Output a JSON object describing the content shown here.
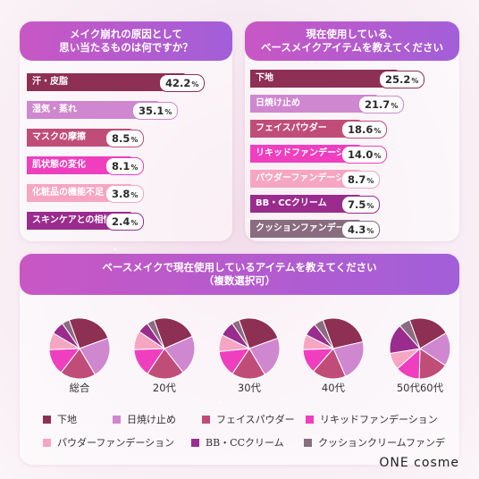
{
  "colors": {
    "c1": "#8e2f54",
    "c2": "#cf87cf",
    "c3": "#c04d78",
    "c4": "#ef3fbe",
    "c5": "#f6a6c2",
    "c6": "#9a2c8e",
    "c7": "#8a6c80"
  },
  "left_panel": {
    "title_line1": "メイク崩れの原因として",
    "title_line2": "思い当たるものは何ですか？"
  },
  "right_panel": {
    "title_line1": "現在使用している、",
    "title_line2": "ベースメイクアイテムを教えてください"
  },
  "bottom_panel": {
    "title_line1": "ベースメイクで現在使用しているアイテムを教えてください",
    "title_line2": "（複数選択可）"
  },
  "chart_data": [
    {
      "type": "bar",
      "title": "メイク崩れの原因として思い当たるものは何ですか？",
      "categories": [
        "汗・皮脂",
        "湿気・蒸れ",
        "マスクの摩擦",
        "肌状態の変化",
        "化粧品の機能不足",
        "スキンケアとの相性"
      ],
      "values": [
        42.2,
        35.1,
        8.5,
        8.1,
        3.8,
        2.4
      ],
      "value_labels": [
        "42.2",
        "35.1",
        "8.5",
        "8.1",
        "3.8",
        "2.4"
      ],
      "unit": "%",
      "bar_colors": [
        "#8e2f54",
        "#cf87cf",
        "#c04d78",
        "#ef3fbe",
        "#f6a6c2",
        "#9a2c8e"
      ]
    },
    {
      "type": "bar",
      "title": "現在使用している、ベースメイクアイテムを教えてください",
      "categories": [
        "下地",
        "日焼け止め",
        "フェイスパウダー",
        "リキッドファンデーション",
        "パウダーファンデーション",
        "BB・CCクリーム",
        "クッションファンデーション"
      ],
      "values": [
        25.2,
        21.7,
        18.6,
        14.0,
        8.7,
        7.5,
        4.3
      ],
      "value_labels": [
        "25.2",
        "21.7",
        "18.6",
        "14.0",
        "8.7",
        "7.5",
        "4.3"
      ],
      "unit": "%",
      "bar_colors": [
        "#8e2f54",
        "#cf87cf",
        "#c04d78",
        "#ef3fbe",
        "#f6a6c2",
        "#9a2c8e",
        "#8a6c80"
      ]
    },
    {
      "type": "pie",
      "title": "ベースメイクで現在使用しているアイテムを教えてください（複数選択可）",
      "series_names": [
        "下地",
        "日焼け止め",
        "フェイスパウダー",
        "リキッドファンデーション",
        "パウダーファンデーション",
        "BB・CCクリーム",
        "クッションクリームファンデ"
      ],
      "series_colors": [
        "#8e2f54",
        "#cf87cf",
        "#c04d78",
        "#ef3fbe",
        "#f6a6c2",
        "#9a2c8e",
        "#8a6c80"
      ],
      "pies": [
        {
          "label": "総合",
          "values": [
            25,
            22,
            19,
            14,
            9,
            7,
            4
          ]
        },
        {
          "label": "20代",
          "values": [
            24,
            21,
            20,
            15,
            10,
            6,
            4
          ]
        },
        {
          "label": "30代",
          "values": [
            25,
            22,
            18,
            14,
            9,
            8,
            4
          ]
        },
        {
          "label": "40代",
          "values": [
            27,
            22,
            18,
            13,
            8,
            7,
            5
          ]
        },
        {
          "label": "50代60代",
          "values": [
            22,
            18,
            16,
            13,
            9,
            16,
            6
          ]
        }
      ]
    }
  ],
  "logo": "ONE cosme"
}
